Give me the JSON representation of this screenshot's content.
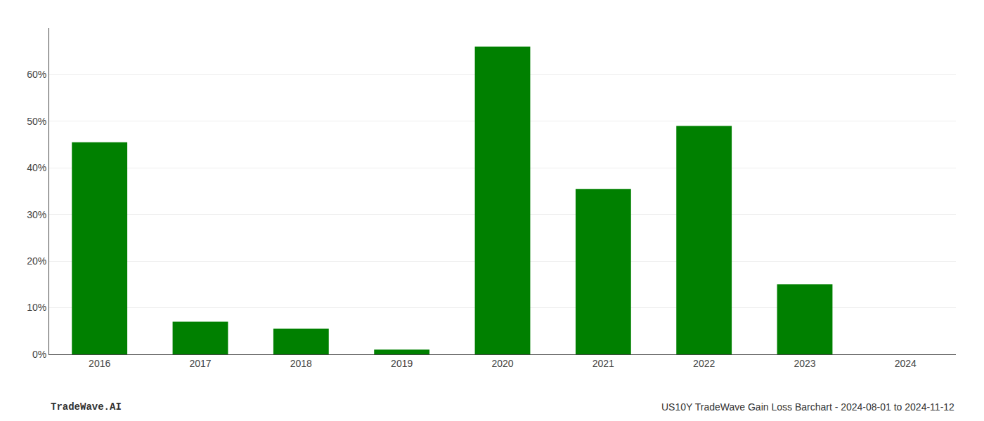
{
  "chart_data": {
    "type": "bar",
    "categories": [
      "2016",
      "2017",
      "2018",
      "2019",
      "2020",
      "2021",
      "2022",
      "2023",
      "2024"
    ],
    "values": [
      45.5,
      7.0,
      5.5,
      1.0,
      66.0,
      35.5,
      49.0,
      15.0,
      0.0
    ],
    "color": "#008000",
    "ylim": [
      0,
      70
    ],
    "yticks": [
      {
        "value": 0,
        "label": "0%"
      },
      {
        "value": 10,
        "label": "10%"
      },
      {
        "value": 20,
        "label": "20%"
      },
      {
        "value": 30,
        "label": "30%"
      },
      {
        "value": 40,
        "label": "40%"
      },
      {
        "value": 50,
        "label": "50%"
      },
      {
        "value": 60,
        "label": "60%"
      }
    ],
    "grid": true,
    "annotations": [
      "TradeWave.AI",
      "US10Y TradeWave Gain Loss Barchart - 2024-08-01 to 2024-11-12"
    ]
  }
}
